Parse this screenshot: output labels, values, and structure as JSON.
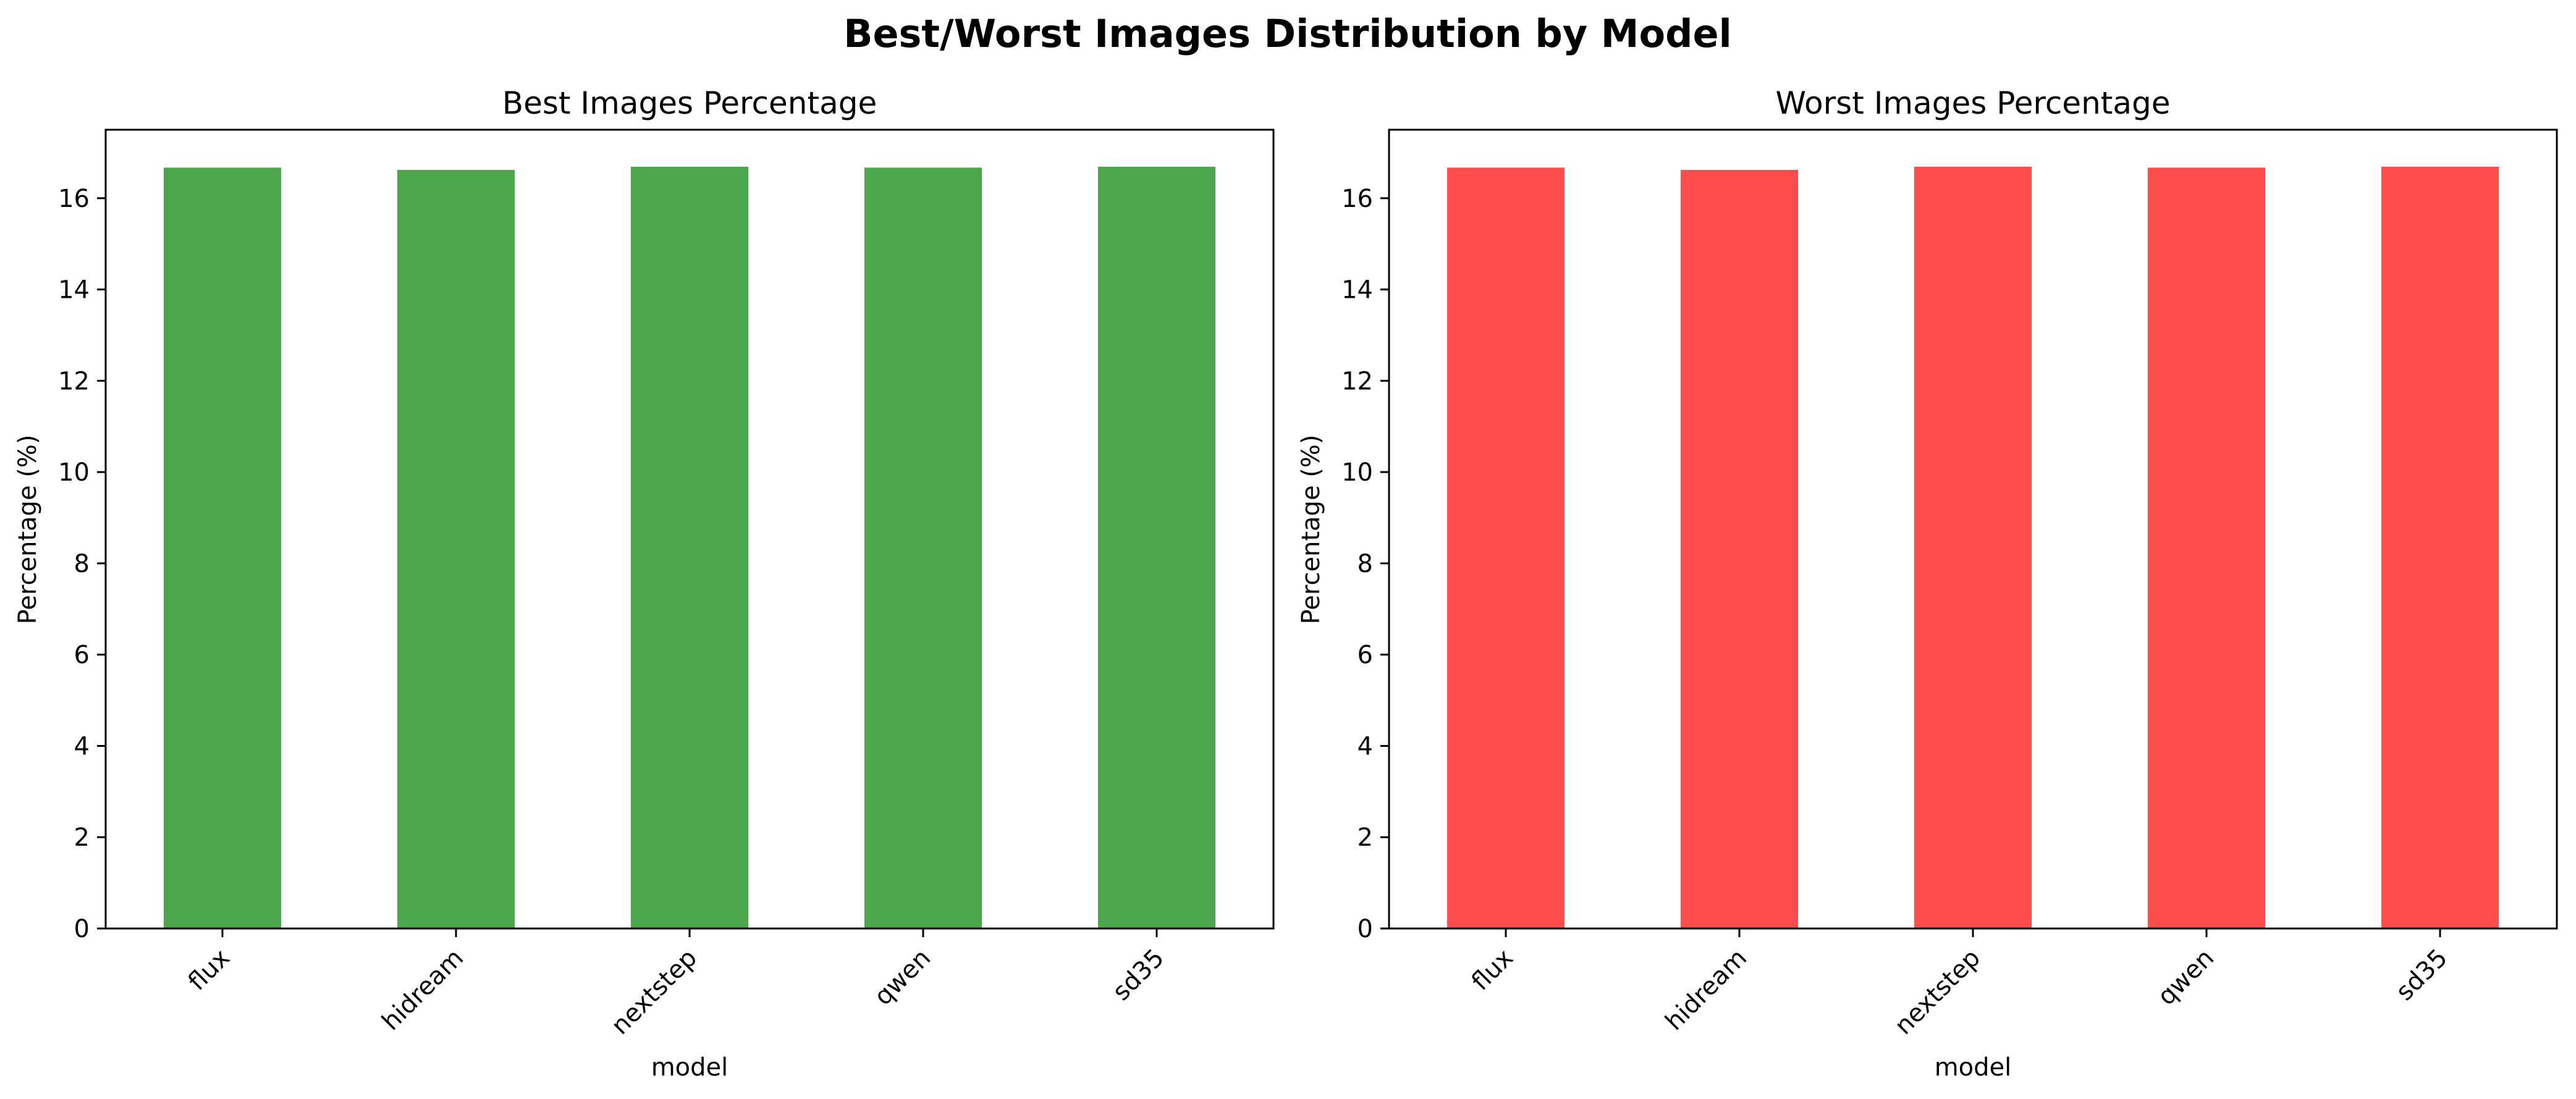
{
  "figure": {
    "suptitle": "Best/Worst Images Distribution by Model"
  },
  "chart_data": [
    {
      "type": "bar",
      "title": "Best Images Percentage",
      "xlabel": "model",
      "ylabel": "Percentage (%)",
      "categories": [
        "flux",
        "hidream",
        "nextstep",
        "qwen",
        "sd35"
      ],
      "values": [
        16.67,
        16.62,
        16.69,
        16.67,
        16.69
      ],
      "ylim": [
        0,
        17.5
      ],
      "yticks": [
        0,
        2,
        4,
        6,
        8,
        10,
        12,
        14,
        16
      ],
      "color": "#4ca64c",
      "grid": false,
      "legend": "none"
    },
    {
      "type": "bar",
      "title": "Worst Images Percentage",
      "xlabel": "model",
      "ylabel": "Percentage (%)",
      "categories": [
        "flux",
        "hidream",
        "nextstep",
        "qwen",
        "sd35"
      ],
      "values": [
        16.67,
        16.62,
        16.69,
        16.67,
        16.69
      ],
      "ylim": [
        0,
        17.5
      ],
      "yticks": [
        0,
        2,
        4,
        6,
        8,
        10,
        12,
        14,
        16
      ],
      "color": "#ff4c4c",
      "grid": false,
      "legend": "none"
    }
  ]
}
